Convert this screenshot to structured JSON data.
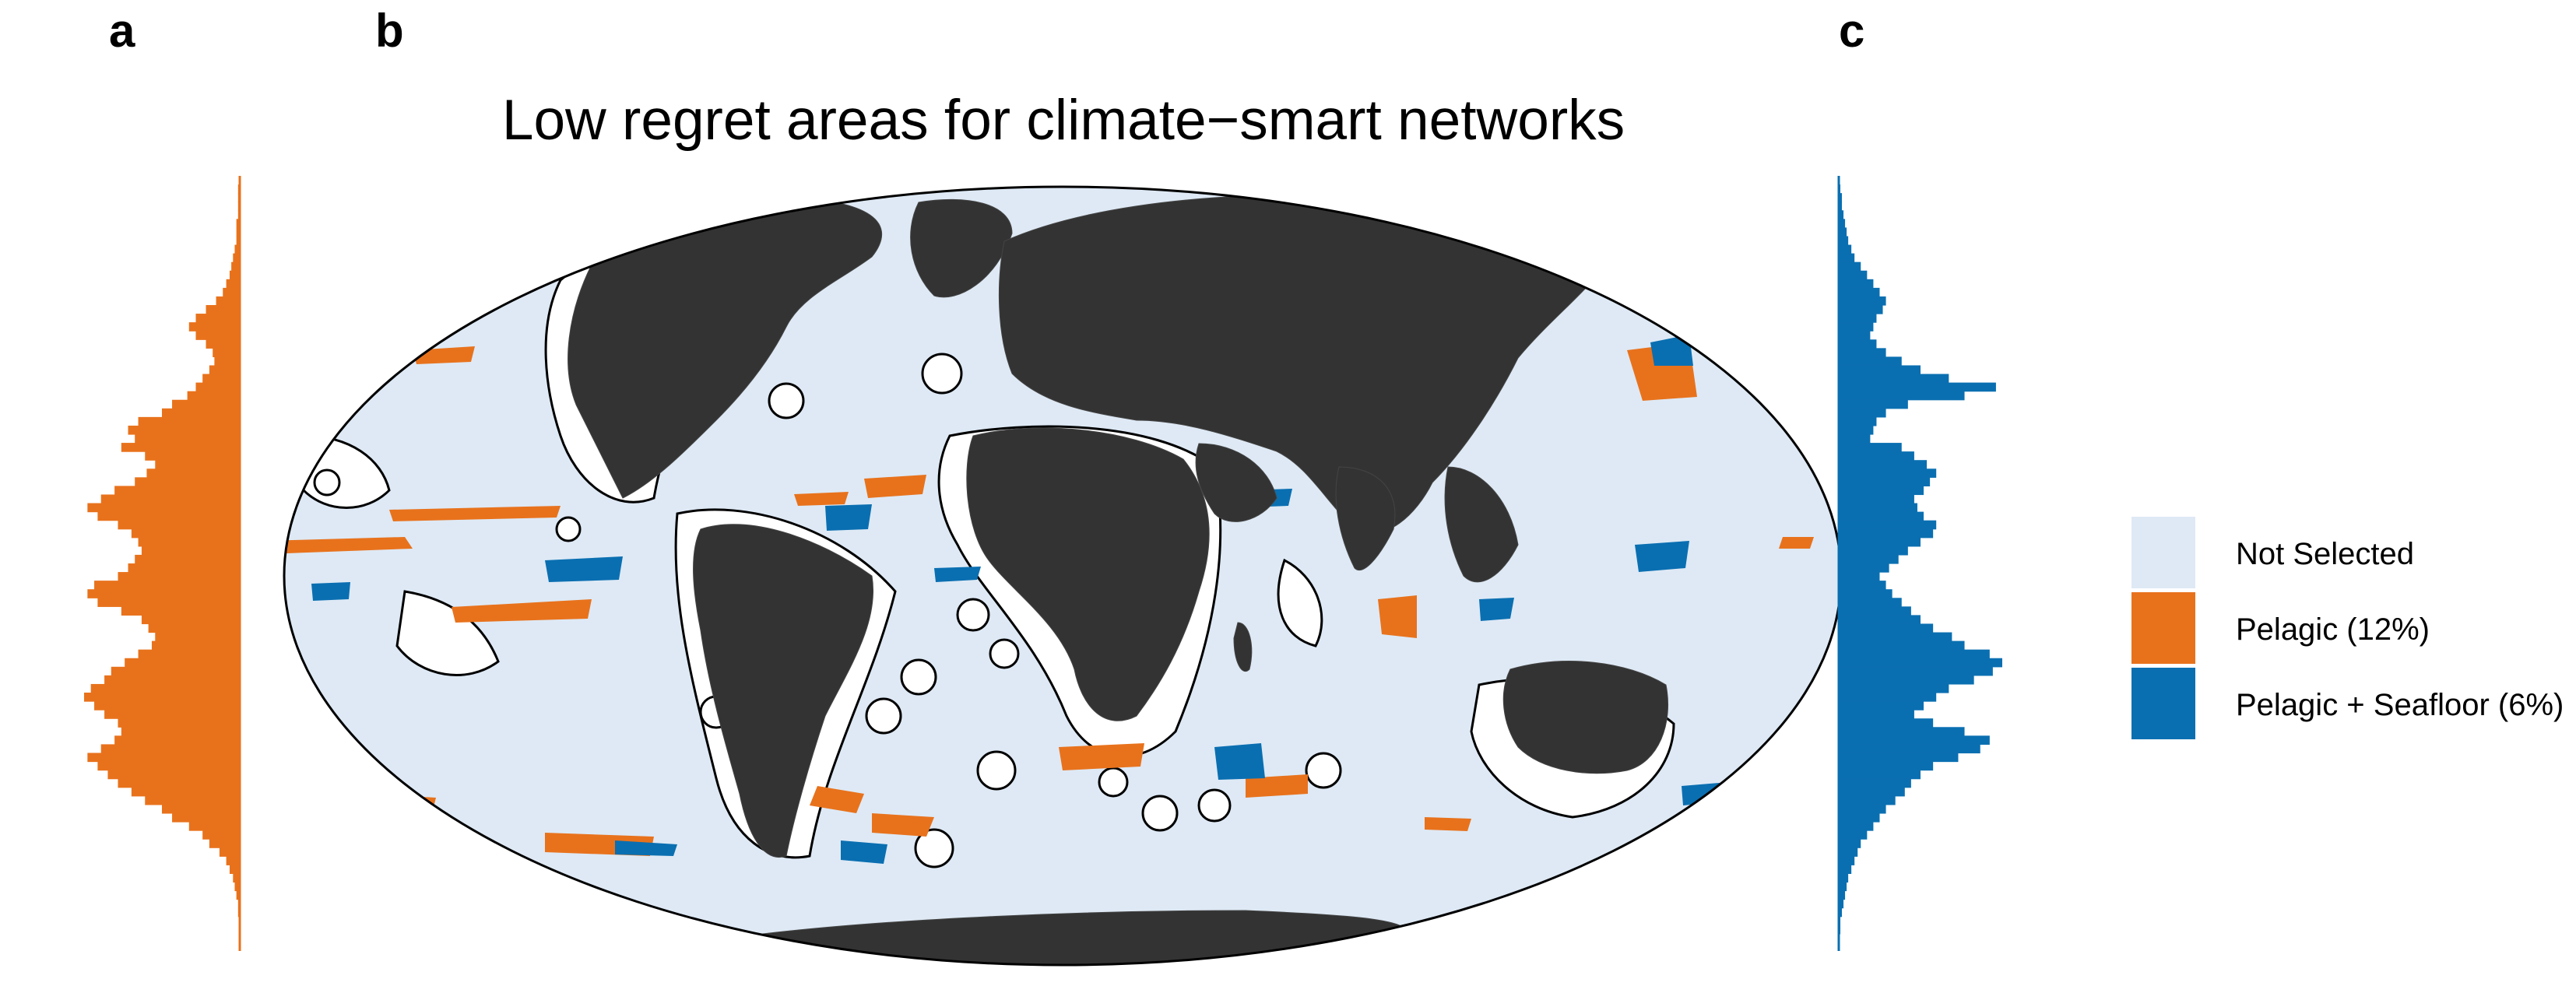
{
  "panels": {
    "a": "a",
    "b": "b",
    "c": "c"
  },
  "title": "Low regret areas for climate−smart networks",
  "chart_data": [
    {
      "panel": "a",
      "type": "area",
      "orientation": "horizontal",
      "series": [
        {
          "values": [
            0,
            1,
            1,
            1,
            1,
            2,
            2,
            2,
            3,
            4,
            5,
            6,
            8,
            10,
            14,
            20,
            26,
            30,
            26,
            20,
            16,
            15,
            18,
            22,
            26,
            31,
            40,
            46,
            60,
            66,
            62,
            70,
            56,
            50,
            55,
            62,
            74,
            82,
            90,
            84,
            72,
            64,
            60,
            58,
            62,
            66,
            72,
            86,
            90,
            84,
            70,
            58,
            54,
            50,
            52,
            60,
            68,
            76,
            80,
            88,
            92,
            86,
            80,
            72,
            70,
            74,
            82,
            90,
            84,
            78,
            72,
            64,
            56,
            46,
            40,
            30,
            22,
            18,
            12,
            8,
            6,
            4,
            3,
            2,
            1,
            1,
            0,
            0,
            0,
            0
          ]
        }
      ],
      "colors": {
        "fill": "#E8721C"
      }
    },
    {
      "panel": "b",
      "type": "map",
      "title": "Low regret areas for climate−smart networks",
      "projection": "Mollweide",
      "categories": [
        "Not Selected",
        "Pelagic (12%)",
        "Pelagic + Seafloor (6%)"
      ],
      "colors": {
        "Not Selected": "#DEE9F5",
        "Pelagic (12%)": "#E8721C",
        "Pelagic + Seafloor (6%)": "#0A6FB1",
        "land": "#333333",
        "excluded": "#FFFFFF"
      }
    },
    {
      "panel": "c",
      "type": "area",
      "orientation": "horizontal",
      "series": [
        {
          "values": [
            0,
            1,
            2,
            2,
            3,
            4,
            5,
            6,
            8,
            10,
            14,
            18,
            22,
            26,
            30,
            28,
            24,
            22,
            20,
            24,
            30,
            40,
            52,
            70,
            100,
            80,
            44,
            30,
            24,
            22,
            20,
            40,
            48,
            56,
            62,
            58,
            54,
            48,
            50,
            54,
            62,
            60,
            52,
            44,
            38,
            32,
            26,
            30,
            34,
            40,
            46,
            52,
            60,
            72,
            80,
            96,
            104,
            98,
            86,
            70,
            62,
            54,
            48,
            60,
            80,
            96,
            90,
            76,
            60,
            52,
            46,
            42,
            36,
            30,
            26,
            22,
            18,
            14,
            12,
            10,
            8,
            6,
            5,
            4,
            3,
            2,
            1,
            1,
            0,
            0
          ]
        }
      ],
      "colors": {
        "fill": "#0A6FB1"
      }
    }
  ],
  "legend": {
    "items": [
      {
        "label": "Not Selected",
        "color": "#DEE9F5"
      },
      {
        "label": "Pelagic (12%)",
        "color": "#E8721C"
      },
      {
        "label": "Pelagic + Seafloor (6%)",
        "color": "#0A6FB1"
      }
    ]
  }
}
